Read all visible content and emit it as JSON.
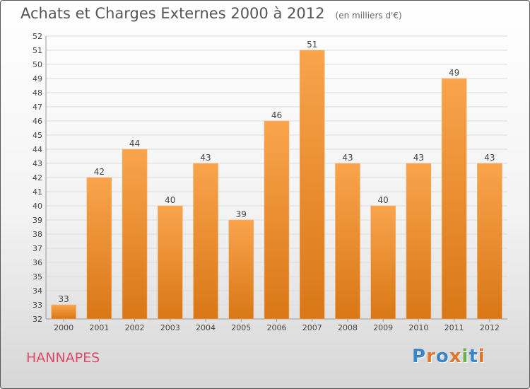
{
  "header": {
    "title": "Achats et Charges Externes 2000 à 2012",
    "subtitle": "(en milliers d'€)"
  },
  "footer": {
    "place": "HANNAPES",
    "logo": "Proxiti",
    "logo_colors": [
      "#3d86c6",
      "#e0752d",
      "#3d86c6",
      "#e0752d",
      "#6ab04c",
      "#3d86c6",
      "#e0752d"
    ]
  },
  "colors": {
    "bar_top": "#f9a44c",
    "bar_bottom": "#d97716",
    "grid": "#dcdcdc",
    "axis": "#999999",
    "text": "#444444"
  },
  "chart_data": {
    "type": "bar",
    "categories": [
      "2000",
      "2001",
      "2002",
      "2003",
      "2004",
      "2005",
      "2006",
      "2007",
      "2008",
      "2009",
      "2010",
      "2011",
      "2012"
    ],
    "values": [
      33,
      42,
      44,
      40,
      43,
      39,
      46,
      51,
      43,
      40,
      43,
      49,
      43
    ],
    "title": "Achats et Charges Externes 2000 à 2012",
    "subtitle": "(en milliers d'€)",
    "xlabel": "",
    "ylabel": "",
    "ylim": [
      32,
      52
    ],
    "yticks": [
      32,
      33,
      34,
      35,
      36,
      37,
      38,
      39,
      40,
      41,
      42,
      43,
      44,
      45,
      46,
      47,
      48,
      49,
      50,
      51,
      52
    ],
    "grid": true,
    "data_labels": true
  }
}
